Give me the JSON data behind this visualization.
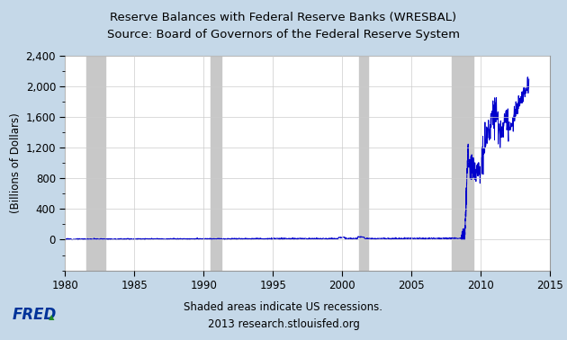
{
  "title_line1": "Reserve Balances with Federal Reserve Banks (WRESBAL)",
  "title_line2": "Source: Board of Governors of the Federal Reserve System",
  "ylabel": "(Billions of Dollars)",
  "xlabel_note1": "Shaded areas indicate US recessions.",
  "xlabel_note2": "2013 research.stlouisfed.org",
  "xlim": [
    1980,
    2015
  ],
  "ylim": [
    -400,
    2400
  ],
  "yticks": [
    0,
    400,
    800,
    1200,
    1600,
    2000,
    2400
  ],
  "ytick_labels": [
    "0",
    "400",
    "800",
    "1,200",
    "1,600",
    "2,000",
    "2,400"
  ],
  "xticks": [
    1980,
    1985,
    1990,
    1995,
    2000,
    2005,
    2010,
    2015
  ],
  "recession_bands": [
    [
      1981.5,
      1982.9
    ],
    [
      1990.5,
      1991.3
    ],
    [
      2001.2,
      2001.9
    ],
    [
      2007.9,
      2009.5
    ]
  ],
  "line_color": "#0000CC",
  "recession_color": "#C8C8C8",
  "background_color": "#C5D8E8",
  "plot_background": "#FFFFFF",
  "fred_color": "#003399",
  "title_fontsize": 9.5,
  "axis_fontsize": 8.5,
  "tick_fontsize": 8.5,
  "note_fontsize": 8.5
}
